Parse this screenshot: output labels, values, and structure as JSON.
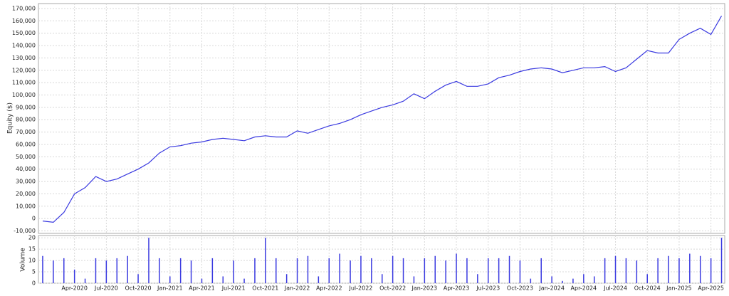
{
  "chart_data": [
    {
      "type": "line",
      "ylabel": "Equity ($)",
      "color": "#3a3ae0",
      "grid": true,
      "x": [
        "Jan-2020",
        "Feb-2020",
        "Mar-2020",
        "Apr-2020",
        "May-2020",
        "Jun-2020",
        "Jul-2020",
        "Aug-2020",
        "Sep-2020",
        "Oct-2020",
        "Nov-2020",
        "Dec-2020",
        "Jan-2021",
        "Feb-2021",
        "Mar-2021",
        "Apr-2021",
        "May-2021",
        "Jun-2021",
        "Jul-2021",
        "Aug-2021",
        "Sep-2021",
        "Oct-2021",
        "Nov-2021",
        "Dec-2021",
        "Jan-2022",
        "Feb-2022",
        "Mar-2022",
        "Apr-2022",
        "May-2022",
        "Jun-2022",
        "Jul-2022",
        "Aug-2022",
        "Sep-2022",
        "Oct-2022",
        "Nov-2022",
        "Dec-2022",
        "Jan-2023",
        "Feb-2023",
        "Mar-2023",
        "Apr-2023",
        "May-2023",
        "Jun-2023",
        "Jul-2023",
        "Aug-2023",
        "Sep-2023",
        "Oct-2023",
        "Nov-2023",
        "Dec-2023",
        "Jan-2024",
        "Feb-2024",
        "Mar-2024",
        "Apr-2024",
        "May-2024",
        "Jun-2024",
        "Jul-2024",
        "Aug-2024",
        "Sep-2024",
        "Oct-2024",
        "Nov-2024",
        "Dec-2024",
        "Jan-2025",
        "Feb-2025",
        "Mar-2025",
        "Apr-2025",
        "May-2025"
      ],
      "values": [
        -2000,
        -3000,
        5000,
        20000,
        25000,
        34000,
        30000,
        32000,
        36000,
        40000,
        45000,
        53000,
        58000,
        59000,
        61000,
        62000,
        64000,
        65000,
        64000,
        63000,
        66000,
        67000,
        66000,
        66000,
        71000,
        69000,
        72000,
        75000,
        77000,
        80000,
        84000,
        87000,
        90000,
        92000,
        95000,
        101000,
        97000,
        103000,
        108000,
        111000,
        107000,
        107000,
        109000,
        114000,
        116000,
        119000,
        121000,
        122000,
        121000,
        118000,
        120000,
        122000,
        122000,
        123000,
        119000,
        122000,
        129000,
        136000,
        134000,
        134000,
        145000,
        150000,
        154000,
        149000,
        164000
      ],
      "xticks": [
        "Apr-2020",
        "Jul-2020",
        "Oct-2020",
        "Jan-2021",
        "Apr-2021",
        "Jul-2021",
        "Oct-2021",
        "Jan-2022",
        "Apr-2022",
        "Jul-2022",
        "Oct-2022",
        "Jan-2023",
        "Apr-2023",
        "Jul-2023",
        "Oct-2023",
        "Jan-2024",
        "Apr-2024",
        "Jul-2024",
        "Oct-2024",
        "Jan-2025",
        "Apr-2025"
      ],
      "ylim": [
        -12000,
        174000
      ],
      "yticks": [
        {
          "value": -10000,
          "label": "-10,000"
        },
        0,
        {
          "value": 10000,
          "label": "10,000"
        },
        {
          "value": 20000,
          "label": "20,000"
        },
        {
          "value": 30000,
          "label": "30,000"
        },
        {
          "value": 40000,
          "label": "40,000"
        },
        {
          "value": 50000,
          "label": "50,000"
        },
        {
          "value": 60000,
          "label": "60,000"
        },
        {
          "value": 70000,
          "label": "70,000"
        },
        {
          "value": 80000,
          "label": "80,000"
        },
        {
          "value": 90000,
          "label": "90,000"
        },
        {
          "value": 100000,
          "label": "100,000"
        },
        {
          "value": 110000,
          "label": "110,000"
        },
        {
          "value": 120000,
          "label": "120,000"
        },
        {
          "value": 130000,
          "label": "130,000"
        },
        {
          "value": 140000,
          "label": "140,000"
        },
        {
          "value": 150000,
          "label": "150,000"
        },
        {
          "value": 160000,
          "label": "160,000"
        },
        {
          "value": 170000,
          "label": "170,000"
        }
      ]
    },
    {
      "type": "bar",
      "ylabel": "Volume",
      "color": "#3a3ae0",
      "grid": true,
      "values": [
        12,
        10,
        11,
        6,
        2,
        11,
        10,
        11,
        12,
        4,
        20,
        11,
        3,
        11,
        10,
        2,
        11,
        3,
        10,
        2,
        11,
        20,
        11,
        4,
        11,
        12,
        3,
        11,
        13,
        10,
        12,
        11,
        4,
        12,
        11,
        3,
        11,
        12,
        10,
        13,
        11,
        4,
        11,
        11,
        12,
        10,
        2,
        11,
        3,
        1,
        2,
        4,
        3,
        11,
        12,
        11,
        10,
        4,
        11,
        12,
        11,
        13,
        12,
        11,
        20
      ],
      "ylim": [
        0,
        21
      ],
      "yticks": [
        0,
        5,
        10,
        15,
        20
      ]
    }
  ]
}
